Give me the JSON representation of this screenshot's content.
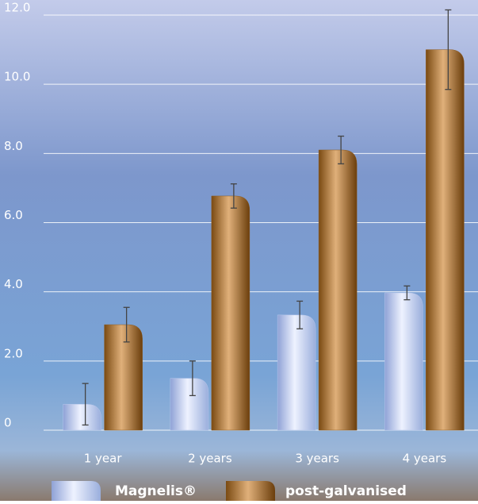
{
  "chart_data": {
    "type": "bar",
    "categories": [
      "1 year",
      "2 years",
      "3 years",
      "4 years"
    ],
    "series": [
      {
        "name": "Magnelis®",
        "color": "#b7c7ec",
        "values": [
          0.75,
          1.5,
          3.33,
          3.97
        ],
        "errors": [
          0.6,
          0.5,
          0.4,
          0.2
        ]
      },
      {
        "name": "post-galvanised",
        "color": "#8c5a1e",
        "values": [
          3.05,
          6.77,
          8.1,
          11.0
        ],
        "errors": [
          0.5,
          0.35,
          0.4,
          1.15
        ]
      }
    ],
    "ylim": [
      0,
      12
    ],
    "yticks": [
      0,
      {
        "value": 2,
        "label": "2.0"
      },
      {
        "value": 4,
        "label": "4.0"
      },
      {
        "value": 6,
        "label": "6.0"
      },
      {
        "value": 8,
        "label": "8.0"
      },
      {
        "value": 10,
        "label": "10.0"
      },
      {
        "value": 12,
        "label": "12.0"
      }
    ],
    "grid": true
  }
}
